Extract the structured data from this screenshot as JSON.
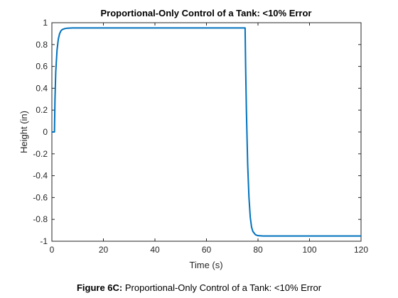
{
  "chart_data": {
    "type": "line",
    "title": "Proportional-Only Control of a Tank: <10% Error",
    "xlabel": "Time (s)",
    "ylabel": "Height (in)",
    "xlim": [
      0,
      120
    ],
    "ylim": [
      -1,
      1
    ],
    "xticks": [
      "0",
      "20",
      "40",
      "60",
      "80",
      "100",
      "120"
    ],
    "yticks": [
      "1",
      "0.8",
      "0.6",
      "0.4",
      "0.2",
      "0",
      "-0.2",
      "-0.4",
      "-0.6",
      "-0.8",
      "-1"
    ],
    "grid": false,
    "series": [
      {
        "color": "#0072bd",
        "x": [
          0,
          1,
          1.2,
          1.5,
          2,
          2.5,
          3,
          3.5,
          4,
          5,
          6,
          8,
          10,
          20,
          40,
          60,
          75,
          75.2,
          75.5,
          76,
          76.5,
          77,
          77.5,
          78,
          79,
          80,
          82,
          85,
          100,
          120
        ],
        "y": [
          0,
          0,
          0.3,
          0.55,
          0.75,
          0.85,
          0.9,
          0.925,
          0.937,
          0.946,
          0.95,
          0.952,
          0.952,
          0.952,
          0.952,
          0.952,
          0.952,
          0.6,
          0.2,
          -0.3,
          -0.6,
          -0.78,
          -0.87,
          -0.91,
          -0.94,
          -0.949,
          -0.952,
          -0.952,
          -0.952,
          -0.952
        ]
      }
    ]
  },
  "caption": {
    "label": "Figure 6C:",
    "text": " Proportional-Only Control of a Tank: <10% Error"
  }
}
